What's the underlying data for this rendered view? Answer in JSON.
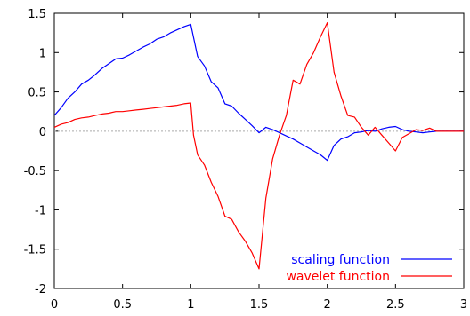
{
  "chart_data": {
    "type": "line",
    "title": "",
    "xlabel": "",
    "ylabel": "",
    "xlim": [
      0,
      3
    ],
    "ylim": [
      -2,
      1.5
    ],
    "xticks": [
      0,
      0.5,
      1,
      1.5,
      2,
      2.5,
      3
    ],
    "xtick_labels": [
      "0",
      "0.5",
      "1",
      "1.5",
      "2",
      "2.5",
      "3"
    ],
    "yticks": [
      -2,
      -1.5,
      -1,
      -0.5,
      0,
      0.5,
      1,
      1.5
    ],
    "ytick_labels": [
      "-2",
      "-1.5",
      "-1",
      "-0.5",
      "0",
      "0.5",
      "1",
      "1.5"
    ],
    "zero_line": true,
    "grid": false,
    "legend_position": "bottom-right",
    "series": [
      {
        "name": "scaling function",
        "color": "#0000ff",
        "points": [
          [
            0,
            0.2
          ],
          [
            0.05,
            0.3
          ],
          [
            0.1,
            0.42
          ],
          [
            0.15,
            0.5
          ],
          [
            0.2,
            0.6
          ],
          [
            0.25,
            0.65
          ],
          [
            0.3,
            0.72
          ],
          [
            0.35,
            0.8
          ],
          [
            0.4,
            0.86
          ],
          [
            0.45,
            0.92
          ],
          [
            0.5,
            0.93
          ],
          [
            0.55,
            0.97
          ],
          [
            0.6,
            1.02
          ],
          [
            0.65,
            1.07
          ],
          [
            0.7,
            1.11
          ],
          [
            0.75,
            1.17
          ],
          [
            0.8,
            1.2
          ],
          [
            0.85,
            1.25
          ],
          [
            0.9,
            1.29
          ],
          [
            0.95,
            1.33
          ],
          [
            1.0,
            1.36
          ],
          [
            1.05,
            0.95
          ],
          [
            1.1,
            0.83
          ],
          [
            1.15,
            0.63
          ],
          [
            1.2,
            0.55
          ],
          [
            1.25,
            0.35
          ],
          [
            1.3,
            0.32
          ],
          [
            1.35,
            0.23
          ],
          [
            1.4,
            0.15
          ],
          [
            1.45,
            0.07
          ],
          [
            1.5,
            -0.02
          ],
          [
            1.55,
            0.05
          ],
          [
            1.6,
            0.02
          ],
          [
            1.65,
            -0.02
          ],
          [
            1.7,
            -0.06
          ],
          [
            1.75,
            -0.1
          ],
          [
            1.8,
            -0.15
          ],
          [
            1.85,
            -0.2
          ],
          [
            1.9,
            -0.25
          ],
          [
            1.95,
            -0.3
          ],
          [
            2.0,
            -0.37
          ],
          [
            2.05,
            -0.18
          ],
          [
            2.1,
            -0.1
          ],
          [
            2.15,
            -0.07
          ],
          [
            2.2,
            -0.02
          ],
          [
            2.25,
            -0.01
          ],
          [
            2.3,
            0.01
          ],
          [
            2.35,
            0.0
          ],
          [
            2.4,
            0.03
          ],
          [
            2.45,
            0.05
          ],
          [
            2.5,
            0.06
          ],
          [
            2.55,
            0.02
          ],
          [
            2.6,
            0.0
          ],
          [
            2.65,
            -0.01
          ],
          [
            2.7,
            -0.02
          ],
          [
            2.75,
            -0.01
          ],
          [
            2.8,
            0.0
          ],
          [
            2.9,
            0.0
          ],
          [
            3.0,
            0.0
          ]
        ]
      },
      {
        "name": "wavelet function",
        "color": "#ff0000",
        "points": [
          [
            0,
            0.05
          ],
          [
            0.05,
            0.09
          ],
          [
            0.1,
            0.11
          ],
          [
            0.15,
            0.15
          ],
          [
            0.2,
            0.17
          ],
          [
            0.25,
            0.18
          ],
          [
            0.3,
            0.2
          ],
          [
            0.35,
            0.22
          ],
          [
            0.4,
            0.23
          ],
          [
            0.45,
            0.25
          ],
          [
            0.5,
            0.25
          ],
          [
            0.55,
            0.26
          ],
          [
            0.6,
            0.27
          ],
          [
            0.65,
            0.28
          ],
          [
            0.7,
            0.29
          ],
          [
            0.75,
            0.3
          ],
          [
            0.8,
            0.31
          ],
          [
            0.85,
            0.32
          ],
          [
            0.9,
            0.33
          ],
          [
            0.95,
            0.35
          ],
          [
            1.0,
            0.36
          ],
          [
            1.02,
            -0.05
          ],
          [
            1.05,
            -0.3
          ],
          [
            1.1,
            -0.43
          ],
          [
            1.15,
            -0.65
          ],
          [
            1.2,
            -0.83
          ],
          [
            1.25,
            -1.08
          ],
          [
            1.3,
            -1.12
          ],
          [
            1.35,
            -1.28
          ],
          [
            1.4,
            -1.4
          ],
          [
            1.45,
            -1.55
          ],
          [
            1.5,
            -1.75
          ],
          [
            1.55,
            -0.85
          ],
          [
            1.6,
            -0.35
          ],
          [
            1.65,
            -0.05
          ],
          [
            1.7,
            0.2
          ],
          [
            1.75,
            0.65
          ],
          [
            1.8,
            0.6
          ],
          [
            1.85,
            0.85
          ],
          [
            1.9,
            1.0
          ],
          [
            1.95,
            1.2
          ],
          [
            2.0,
            1.38
          ],
          [
            2.05,
            0.75
          ],
          [
            2.1,
            0.45
          ],
          [
            2.15,
            0.2
          ],
          [
            2.2,
            0.18
          ],
          [
            2.25,
            0.05
          ],
          [
            2.3,
            -0.05
          ],
          [
            2.35,
            0.05
          ],
          [
            2.4,
            -0.05
          ],
          [
            2.45,
            -0.15
          ],
          [
            2.5,
            -0.25
          ],
          [
            2.55,
            -0.08
          ],
          [
            2.6,
            -0.03
          ],
          [
            2.65,
            0.02
          ],
          [
            2.7,
            0.01
          ],
          [
            2.75,
            0.04
          ],
          [
            2.8,
            0.0
          ],
          [
            2.9,
            0.0
          ],
          [
            3.0,
            0.0
          ]
        ]
      }
    ]
  }
}
